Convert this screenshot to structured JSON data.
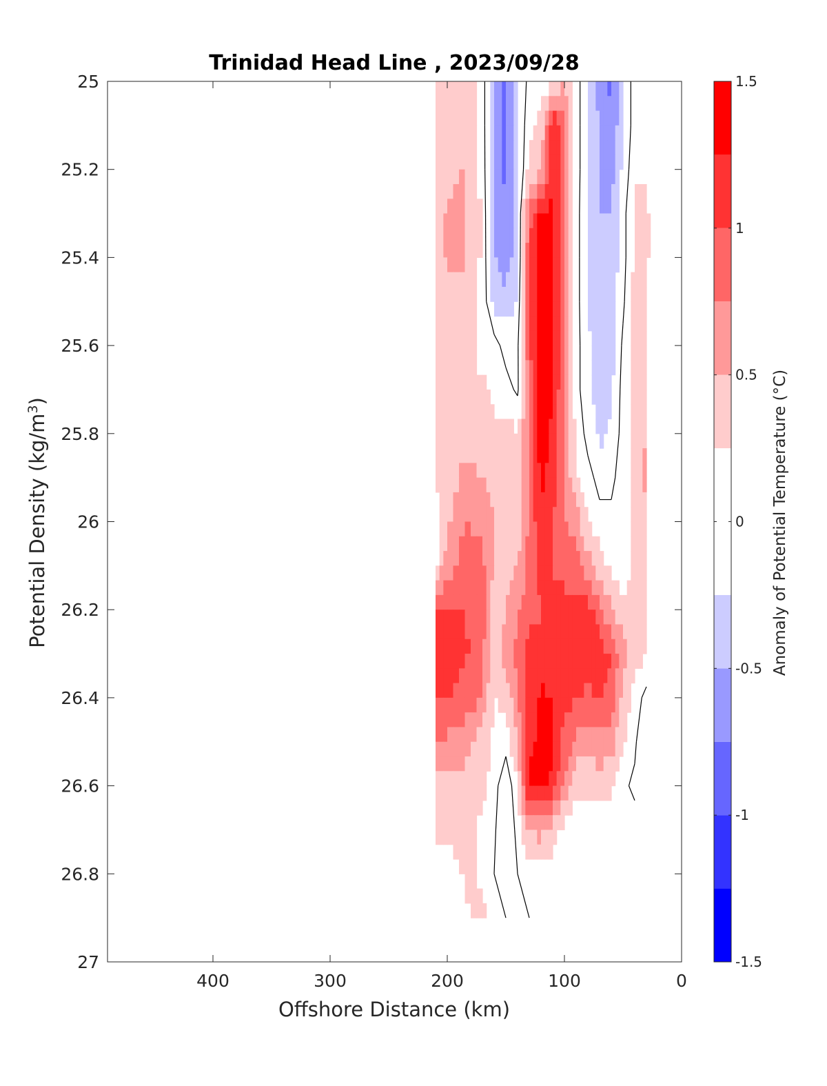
{
  "chart_data": {
    "type": "contour",
    "title": "Trinidad Head Line , 2023/09/28",
    "xlabel": "Offshore Distance (km)",
    "ylabel": "Potential Density (kg/m",
    "ylabel_sup": "3",
    "ylabel_close": ")",
    "xlim": [
      490,
      0
    ],
    "ylim": [
      25,
      27
    ],
    "x_reversed": true,
    "y_reversed": true,
    "xticks": [
      400,
      300,
      200,
      100,
      0
    ],
    "xtick_labels": [
      "400",
      "300",
      "200",
      "100",
      "0"
    ],
    "yticks": [
      25,
      25.2,
      25.4,
      25.6,
      25.8,
      26,
      26.2,
      26.4,
      26.6,
      26.8,
      27
    ],
    "ytick_labels": [
      "25",
      "25.2",
      "25.4",
      "25.6",
      "25.8",
      "26",
      "26.2",
      "26.4",
      "26.6",
      "26.8",
      "27"
    ],
    "colorbar": {
      "label": "Anomaly of Potential Temperature (°C)",
      "range": [
        -1.5,
        1.5
      ],
      "ticks": [
        1.5,
        1,
        0.5,
        0,
        -0.5,
        -1,
        -1.5
      ],
      "tick_labels": [
        "1.5",
        "1",
        "0.5",
        "0",
        "-0.5",
        "-1",
        "-1.5"
      ],
      "levels": [
        -1.5,
        -1.25,
        -1,
        -0.75,
        -0.5,
        -0.25,
        0.25,
        0.5,
        0.75,
        1,
        1.25,
        1.5
      ],
      "colors": [
        "#0000ff",
        "#3333ff",
        "#6666ff",
        "#9999ff",
        "#ccccff",
        "#ffffff",
        "#ffcccc",
        "#ff9999",
        "#ff6666",
        "#ff3333",
        "#ff0000"
      ]
    },
    "x_dist": [
      210,
      200,
      185,
      170,
      160,
      150,
      140,
      130,
      120,
      110,
      100,
      90,
      80,
      70,
      60,
      50,
      40,
      30,
      20
    ],
    "y_sigma": [
      25.0,
      25.1,
      25.2,
      25.3,
      25.4,
      25.5,
      25.6,
      25.7,
      25.8,
      25.9,
      26.0,
      26.1,
      26.2,
      26.3,
      26.4,
      26.5,
      26.6,
      26.7,
      26.8,
      26.9
    ],
    "anomaly": [
      [
        0.35,
        0.35,
        0.35,
        0.15,
        -0.6,
        -0.8,
        -0.3,
        0.1,
        0.1,
        0.1,
        0.5,
        0.1,
        -0.2,
        -0.6,
        -0.85,
        -0.3,
        0.15,
        0.15,
        null
      ],
      [
        0.35,
        0.35,
        0.35,
        0.15,
        -0.6,
        -0.8,
        -0.3,
        0.2,
        0.3,
        1.3,
        0.8,
        0.1,
        -0.2,
        -0.55,
        -0.7,
        -0.3,
        0.15,
        0.15,
        null
      ],
      [
        0.35,
        0.4,
        0.55,
        0.15,
        -0.55,
        -0.8,
        -0.3,
        0.3,
        0.4,
        1.3,
        0.8,
        0.1,
        -0.2,
        -0.5,
        -0.6,
        -0.2,
        0.2,
        0.2,
        null
      ],
      [
        0.35,
        0.55,
        0.55,
        0.2,
        -0.55,
        -0.75,
        -0.3,
        0.9,
        1.3,
        1.3,
        0.8,
        0.1,
        -0.25,
        -0.5,
        -0.5,
        -0.1,
        0.3,
        0.3,
        0.1
      ],
      [
        0.35,
        0.55,
        0.55,
        0.2,
        -0.5,
        -0.7,
        -0.3,
        1.0,
        1.4,
        1.3,
        0.8,
        0.1,
        -0.25,
        -0.45,
        -0.45,
        -0.1,
        0.3,
        0.4,
        0.1
      ],
      [
        0.35,
        0.35,
        0.35,
        0.15,
        -0.3,
        -0.4,
        -0.2,
        1.0,
        1.4,
        1.3,
        0.8,
        0.1,
        -0.25,
        -0.45,
        -0.4,
        -0.05,
        0.35,
        0.4,
        null
      ],
      [
        0.35,
        0.35,
        0.35,
        0.15,
        0.1,
        -0.1,
        -0.05,
        1.0,
        1.4,
        1.3,
        0.7,
        0.1,
        -0.2,
        -0.4,
        -0.35,
        0.05,
        0.35,
        0.45,
        null
      ],
      [
        0.35,
        0.35,
        0.35,
        0.3,
        0.2,
        0.1,
        -0.05,
        0.8,
        1.4,
        1.3,
        0.7,
        0.1,
        -0.2,
        -0.35,
        -0.3,
        0.1,
        0.35,
        0.45,
        null
      ],
      [
        0.35,
        0.35,
        0.35,
        0.35,
        0.3,
        0.3,
        0.3,
        0.8,
        1.4,
        1.2,
        0.7,
        0.2,
        -0.1,
        -0.3,
        -0.2,
        0.1,
        0.35,
        0.5,
        null
      ],
      [
        0.3,
        0.35,
        0.6,
        0.5,
        0.35,
        0.3,
        0.3,
        0.8,
        1.3,
        1.1,
        0.7,
        0.3,
        0.1,
        -0.1,
        -0.05,
        0.1,
        0.35,
        0.6,
        null
      ],
      [
        0.1,
        0.45,
        0.75,
        0.7,
        0.5,
        0.4,
        0.35,
        0.8,
        1.2,
        1.0,
        0.8,
        0.6,
        0.3,
        0.1,
        0.05,
        0.1,
        0.3,
        0.4,
        null
      ],
      [
        0.15,
        0.65,
        0.9,
        0.8,
        0.5,
        0.4,
        0.5,
        0.85,
        1.1,
        1.0,
        0.95,
        0.85,
        0.6,
        0.35,
        0.2,
        0.1,
        0.3,
        0.3,
        null
      ],
      [
        1.05,
        1.0,
        1.0,
        0.9,
        0.3,
        0.5,
        0.7,
        0.9,
        1.0,
        1.0,
        1.05,
        1.1,
        1.1,
        0.85,
        0.5,
        0.3,
        0.3,
        0.3,
        null
      ],
      [
        1.3,
        1.15,
        1.05,
        0.8,
        0.3,
        0.6,
        0.8,
        1.1,
        1.05,
        1.0,
        1.05,
        1.1,
        1.15,
        1.1,
        1.0,
        0.6,
        0.35,
        0.3,
        null
      ],
      [
        1.05,
        1.0,
        0.9,
        0.7,
        0.25,
        0.3,
        0.75,
        1.15,
        1.3,
        1.25,
        1.1,
        1.0,
        0.95,
        1.0,
        0.9,
        0.4,
        0.15,
        -0.1,
        null
      ],
      [
        0.7,
        0.7,
        0.6,
        0.4,
        0.2,
        0.1,
        0.5,
        1.2,
        1.3,
        1.3,
        0.9,
        0.7,
        0.6,
        0.7,
        0.6,
        0.3,
        0.05,
        -0.3,
        null
      ],
      [
        0.4,
        0.4,
        0.4,
        0.3,
        0.1,
        -0.2,
        0.2,
        1.3,
        1.35,
        1.2,
        0.7,
        0.3,
        0.3,
        0.4,
        0.3,
        0.05,
        -0.05,
        -0.1,
        null
      ],
      [
        0.3,
        0.3,
        0.3,
        0.2,
        0.05,
        -0.3,
        0.1,
        0.5,
        0.6,
        0.4,
        0.1,
        0.05,
        0.1,
        0.1,
        0.05,
        0.1,
        0.1,
        null,
        null
      ],
      [
        0.1,
        0.1,
        0.3,
        0.2,
        0.0,
        -0.3,
        0.0,
        0.1,
        0.1,
        0.1,
        0.1,
        0.1,
        0.1,
        0.1,
        0.1,
        0.1,
        null,
        null,
        null
      ],
      [
        null,
        null,
        0.2,
        0.3,
        0.1,
        0.0,
        0.0,
        0.0,
        0.1,
        0.25,
        0.1,
        0.0,
        null,
        null,
        null,
        null,
        null,
        null,
        null
      ]
    ]
  }
}
